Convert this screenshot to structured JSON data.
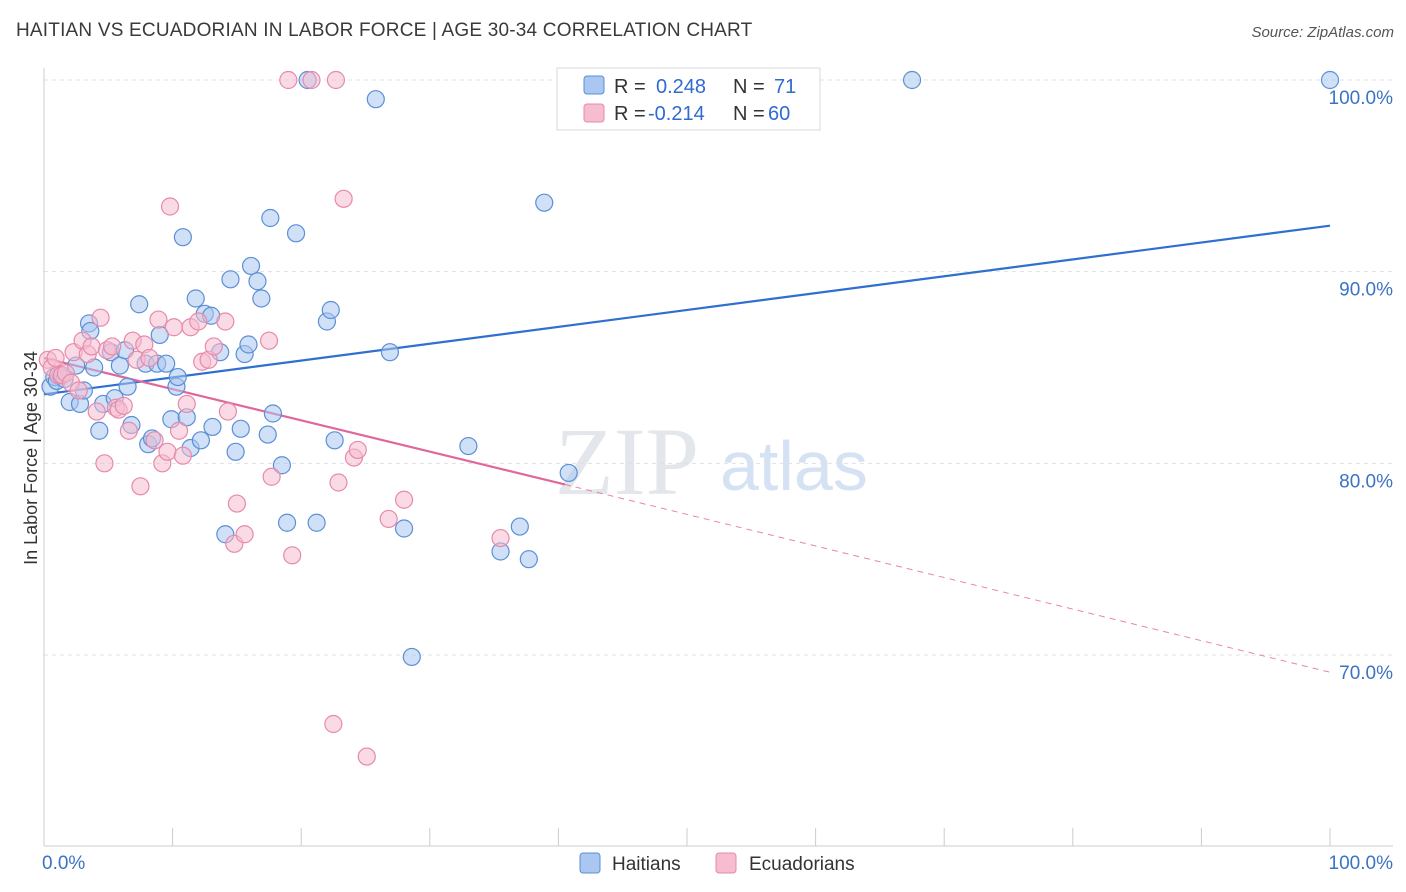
{
  "title": "HAITIAN VS ECUADORIAN IN LABOR FORCE | AGE 30-34 CORRELATION CHART",
  "source": "Source: ZipAtlas.com",
  "colors": {
    "haitian_fill": "#a9c7f0",
    "haitian_stroke": "#5b8fd6",
    "haitian_line": "#2f6fd0",
    "ecuadorian_fill": "#f6bcd0",
    "ecuadorian_stroke": "#e68aaa",
    "ecuadorian_line": "#e0679a",
    "grid": "#dde1e6",
    "tick_text": "#3b73c4"
  },
  "legend": {
    "row1": {
      "r_label": "R =",
      "r_value": "0.248",
      "n_label": "N =",
      "n_value": "71"
    },
    "row2": {
      "r_label": "R =",
      "r_value": "-0.214",
      "n_label": "N =",
      "n_value": "60"
    }
  },
  "watermark": {
    "zip": "ZIP",
    "atlas": "atlas"
  },
  "chart_data": {
    "type": "scatter",
    "xlabel": "",
    "ylabel": "In Labor Force | Age 30-34",
    "xlim": [
      0,
      100
    ],
    "ylim": [
      60.5,
      101.5
    ],
    "x_tick_labels": [
      "0.0%",
      "100.0%"
    ],
    "y_ticks": [
      70,
      80,
      90,
      100
    ],
    "y_tick_labels": [
      "70.0%",
      "80.0%",
      "90.0%",
      "100.0%"
    ],
    "legend_labels": [
      "Haitians",
      "Ecuadorians"
    ],
    "series": [
      {
        "name": "Haitians",
        "R": 0.248,
        "N": 71,
        "trend": {
          "x": [
            0,
            100
          ],
          "y": [
            83.6,
            92.4
          ],
          "dashed_extension": false
        },
        "points": [
          [
            0.5,
            84.0
          ],
          [
            0.8,
            84.5
          ],
          [
            1.0,
            84.3
          ],
          [
            1.3,
            84.6
          ],
          [
            1.6,
            84.4
          ],
          [
            2.0,
            83.2
          ],
          [
            2.5,
            85.1
          ],
          [
            2.8,
            83.1
          ],
          [
            3.1,
            83.8
          ],
          [
            3.5,
            87.3
          ],
          [
            3.6,
            86.9
          ],
          [
            3.9,
            85.0
          ],
          [
            4.3,
            81.7
          ],
          [
            4.6,
            83.1
          ],
          [
            5.2,
            85.8
          ],
          [
            5.5,
            83.4
          ],
          [
            5.9,
            85.1
          ],
          [
            6.3,
            85.9
          ],
          [
            6.5,
            84.0
          ],
          [
            6.8,
            82.0
          ],
          [
            7.4,
            88.3
          ],
          [
            7.9,
            85.2
          ],
          [
            8.1,
            81.0
          ],
          [
            8.4,
            81.3
          ],
          [
            8.8,
            85.2
          ],
          [
            9.0,
            86.7
          ],
          [
            9.5,
            85.2
          ],
          [
            9.9,
            82.3
          ],
          [
            10.3,
            84.0
          ],
          [
            10.4,
            84.5
          ],
          [
            10.8,
            91.8
          ],
          [
            11.1,
            82.4
          ],
          [
            11.4,
            80.8
          ],
          [
            11.8,
            88.6
          ],
          [
            12.2,
            81.2
          ],
          [
            12.5,
            87.8
          ],
          [
            13.0,
            87.7
          ],
          [
            13.1,
            81.9
          ],
          [
            13.7,
            85.8
          ],
          [
            14.1,
            76.3
          ],
          [
            14.5,
            89.6
          ],
          [
            14.9,
            80.6
          ],
          [
            15.3,
            81.8
          ],
          [
            15.6,
            85.7
          ],
          [
            15.9,
            86.2
          ],
          [
            16.1,
            90.3
          ],
          [
            16.6,
            89.5
          ],
          [
            16.9,
            88.6
          ],
          [
            17.4,
            81.5
          ],
          [
            17.6,
            92.8
          ],
          [
            17.8,
            82.6
          ],
          [
            18.5,
            79.9
          ],
          [
            18.9,
            76.9
          ],
          [
            19.6,
            92.0
          ],
          [
            20.5,
            100.0
          ],
          [
            21.2,
            76.9
          ],
          [
            22.0,
            87.4
          ],
          [
            22.3,
            88.0
          ],
          [
            22.6,
            81.2
          ],
          [
            25.8,
            99.0
          ],
          [
            26.9,
            85.8
          ],
          [
            28.0,
            76.6
          ],
          [
            28.6,
            69.9
          ],
          [
            33.0,
            80.9
          ],
          [
            35.5,
            75.4
          ],
          [
            37.0,
            76.7
          ],
          [
            37.7,
            75.0
          ],
          [
            38.9,
            93.6
          ],
          [
            40.8,
            79.5
          ],
          [
            67.5,
            100.0
          ],
          [
            100.0,
            100.0
          ]
        ]
      },
      {
        "name": "Ecuadorians",
        "R": -0.214,
        "N": 60,
        "trend": {
          "x": [
            0,
            40.5
          ],
          "y": [
            85.5,
            78.9
          ],
          "dashed_to": [
            100,
            69.1
          ]
        },
        "points": [
          [
            0.3,
            85.4
          ],
          [
            0.6,
            85.0
          ],
          [
            0.9,
            85.5
          ],
          [
            1.1,
            84.6
          ],
          [
            1.4,
            84.6
          ],
          [
            1.7,
            84.7
          ],
          [
            2.1,
            84.2
          ],
          [
            2.3,
            85.8
          ],
          [
            2.7,
            83.8
          ],
          [
            3.0,
            86.4
          ],
          [
            3.4,
            85.7
          ],
          [
            3.7,
            86.1
          ],
          [
            4.1,
            82.7
          ],
          [
            4.4,
            87.6
          ],
          [
            4.7,
            80.0
          ],
          [
            4.9,
            85.9
          ],
          [
            5.3,
            86.1
          ],
          [
            5.6,
            82.9
          ],
          [
            5.8,
            82.8
          ],
          [
            6.2,
            83.0
          ],
          [
            6.6,
            81.7
          ],
          [
            6.9,
            86.4
          ],
          [
            7.2,
            85.4
          ],
          [
            7.5,
            78.8
          ],
          [
            7.8,
            86.2
          ],
          [
            8.2,
            85.5
          ],
          [
            8.6,
            81.2
          ],
          [
            8.9,
            87.5
          ],
          [
            9.2,
            80.0
          ],
          [
            9.6,
            80.6
          ],
          [
            9.8,
            93.4
          ],
          [
            10.1,
            87.1
          ],
          [
            10.5,
            81.7
          ],
          [
            10.8,
            80.4
          ],
          [
            11.1,
            83.1
          ],
          [
            11.4,
            87.1
          ],
          [
            12.0,
            87.4
          ],
          [
            12.3,
            85.3
          ],
          [
            12.8,
            85.4
          ],
          [
            13.2,
            86.1
          ],
          [
            14.1,
            87.4
          ],
          [
            14.3,
            82.7
          ],
          [
            15.0,
            77.9
          ],
          [
            14.8,
            75.8
          ],
          [
            15.6,
            76.3
          ],
          [
            17.5,
            86.4
          ],
          [
            17.7,
            79.3
          ],
          [
            19.0,
            100.0
          ],
          [
            19.3,
            75.2
          ],
          [
            20.8,
            100.0
          ],
          [
            22.7,
            100.0
          ],
          [
            22.5,
            66.4
          ],
          [
            22.9,
            79.0
          ],
          [
            23.3,
            93.8
          ],
          [
            24.1,
            80.3
          ],
          [
            24.4,
            80.7
          ],
          [
            25.1,
            64.7
          ],
          [
            26.8,
            77.1
          ],
          [
            28.0,
            78.1
          ],
          [
            35.5,
            76.1
          ]
        ]
      }
    ]
  }
}
